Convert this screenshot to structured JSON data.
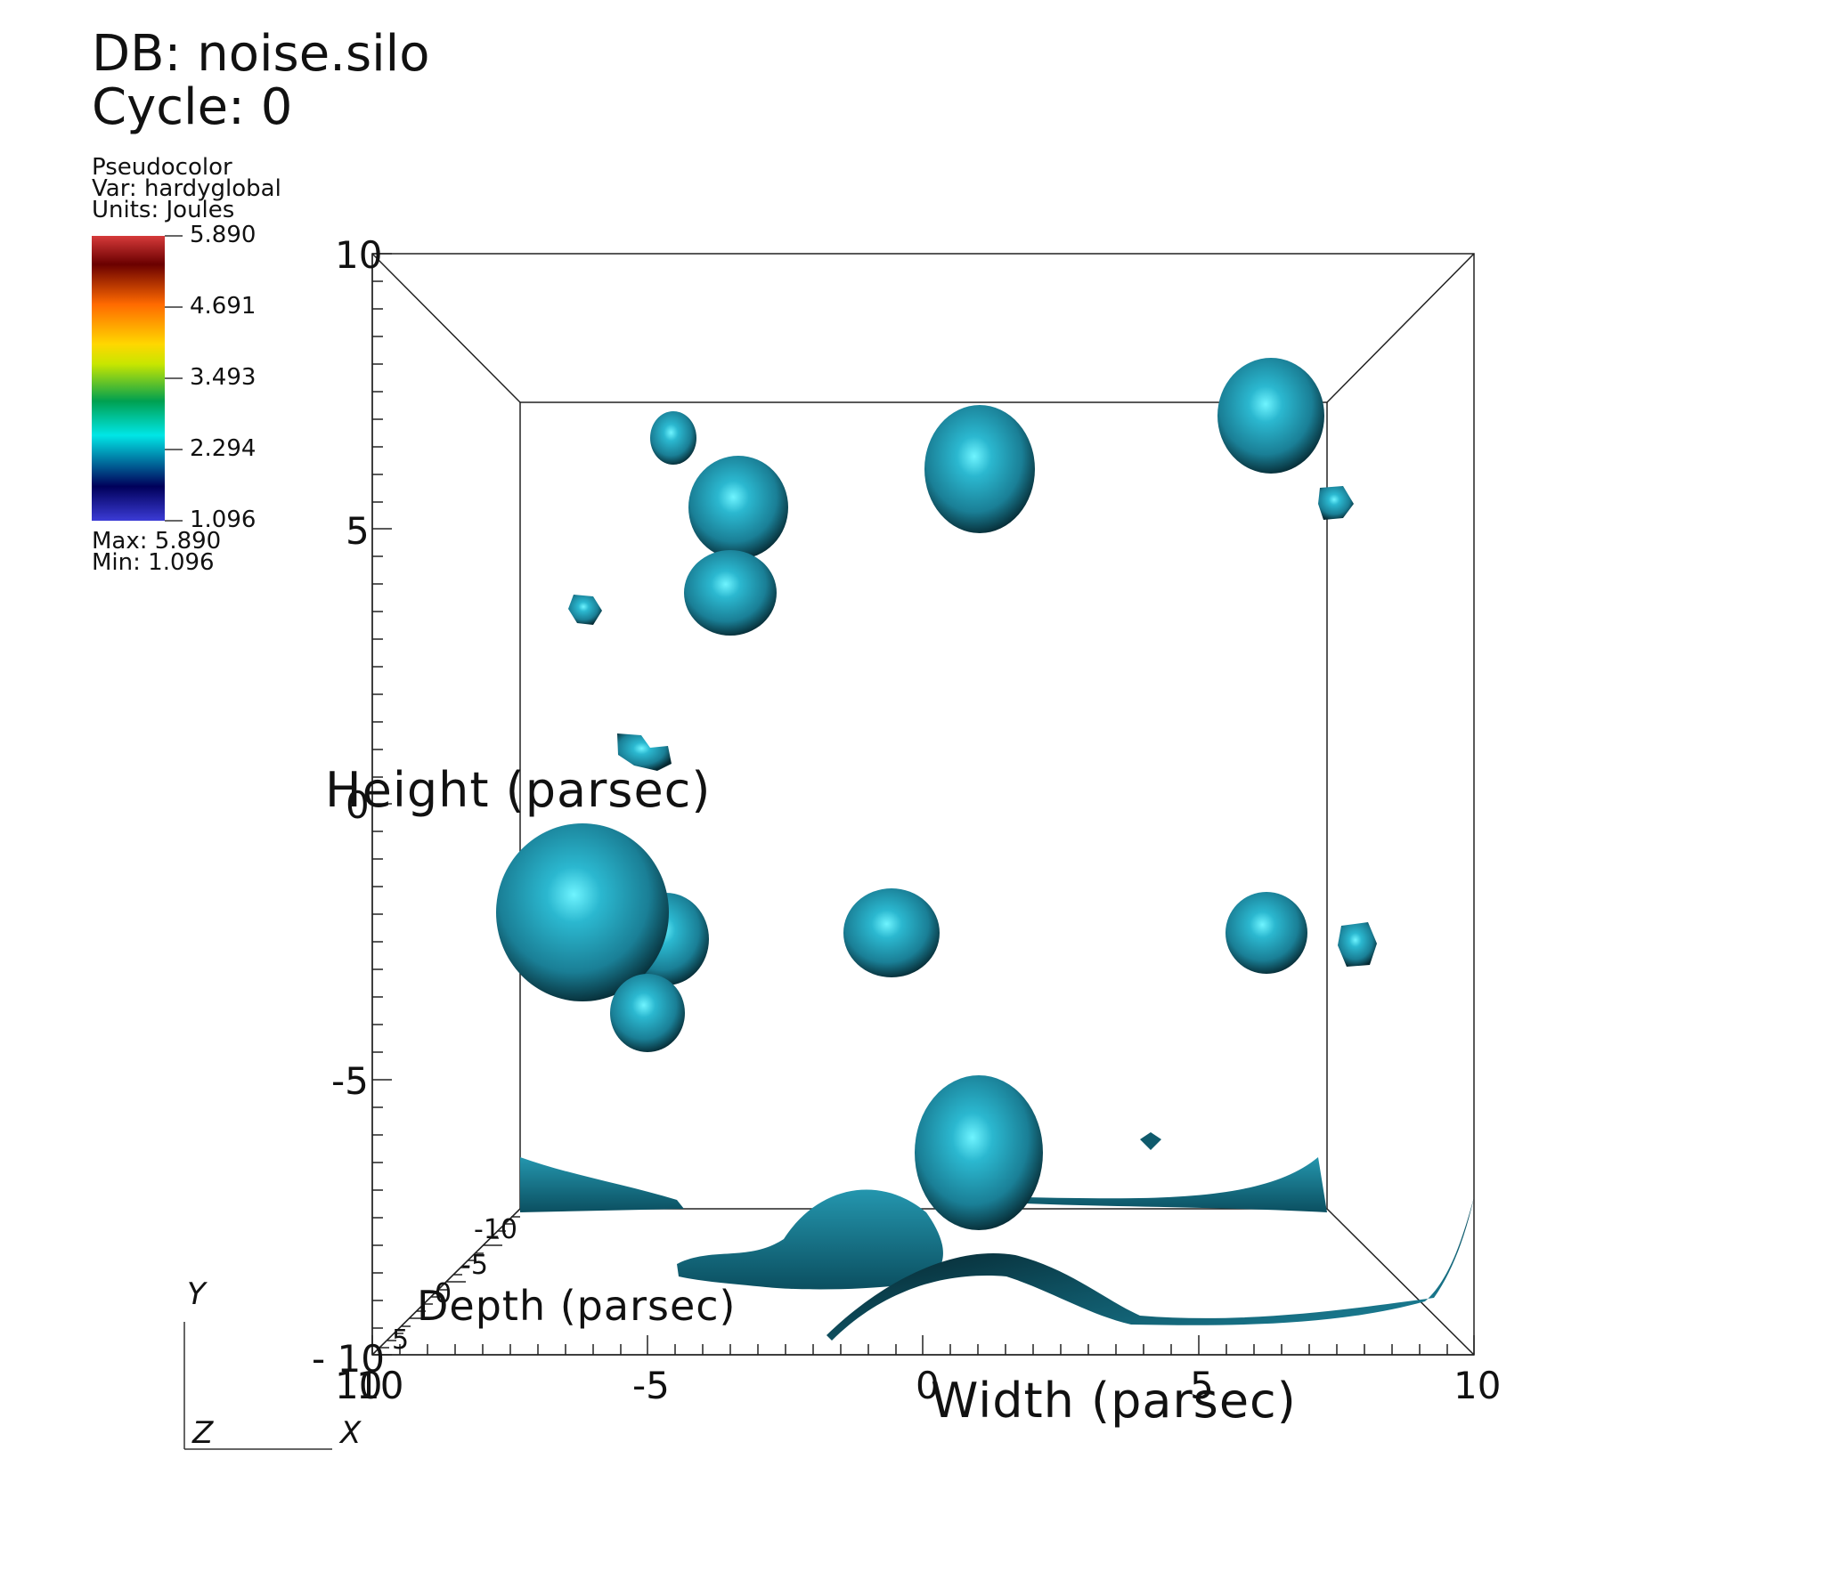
{
  "header": {
    "db_label": "DB: noise.silo",
    "cycle_label": "Cycle: 0"
  },
  "legend": {
    "plot_type": "Pseudocolor",
    "var_label": "Var: hardyglobal",
    "units_label": "Units: Joules",
    "ticks": [
      "5.890",
      "4.691",
      "3.493",
      "2.294",
      "1.096"
    ],
    "max_label": "Max:  5.890",
    "min_label": "Min:  1.096",
    "colormap": [
      "#3b3bd6",
      "#00005a",
      "#00e6e6",
      "#00a050",
      "#c8e600",
      "#ffd700",
      "#ff6a00",
      "#6a0000",
      "#d63a3a"
    ]
  },
  "axes": {
    "height_title": "Height (parsec)",
    "width_title": "Width (parsec)",
    "depth_title": "Depth (parsec)",
    "y_ticks": [
      "10",
      "5",
      "0",
      "-5",
      "- 10"
    ],
    "x_ticks": [
      "10",
      "-5",
      "0",
      "5",
      "10"
    ],
    "x_left_overlap": "10",
    "depth_ticks": [
      "-10",
      "-5",
      "0",
      "5"
    ]
  },
  "triad": {
    "y": "Y",
    "z": "Z",
    "x": "X"
  },
  "colors": {
    "isosurface": "#1d8ba3",
    "isosurface_dark": "#062a33",
    "isosurface_highlight": "#6ff4ff"
  }
}
